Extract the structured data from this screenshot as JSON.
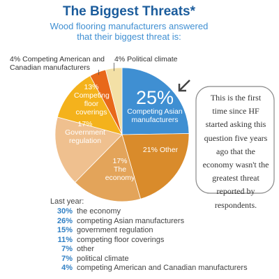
{
  "chart_data": {
    "type": "pie",
    "title": "The Biggest Threats*",
    "subtitle": "Wood flooring manufacturers answered that their biggest threat is:",
    "categories": [
      "Competing Asian manufacturers",
      "Other",
      "The economy",
      "Government regulation",
      "Competing floor coverings",
      "Competing American and Canadian manufacturers",
      "Political climate"
    ],
    "values": [
      25,
      21,
      17,
      17,
      13,
      4,
      4
    ],
    "value_labels": [
      "25%",
      "21%",
      "17%",
      "17%",
      "13%",
      "4%",
      "4%"
    ],
    "colors": [
      "#3f8fd2",
      "#d98b2b",
      "#e3a45a",
      "#efc08f",
      "#f4b21c",
      "#e8681a",
      "#f3e0a6"
    ]
  },
  "callout": "This is the first time since HF started asking this question five years ago that the economy wasn't the greatest threat reported by respondents.",
  "last_year": {
    "title": "Last year:",
    "items": [
      {
        "value": "30%",
        "label": "the economy"
      },
      {
        "value": "26%",
        "label": "competing Asian manufacturers"
      },
      {
        "value": "15%",
        "label": "government regulation"
      },
      {
        "value": "11%",
        "label": "competing floor coverings"
      },
      {
        "value": "7%",
        "label": "other"
      },
      {
        "value": "7%",
        "label": "political climate"
      },
      {
        "value": "4%",
        "label": "competing American and Canadian manufacturers"
      }
    ]
  }
}
